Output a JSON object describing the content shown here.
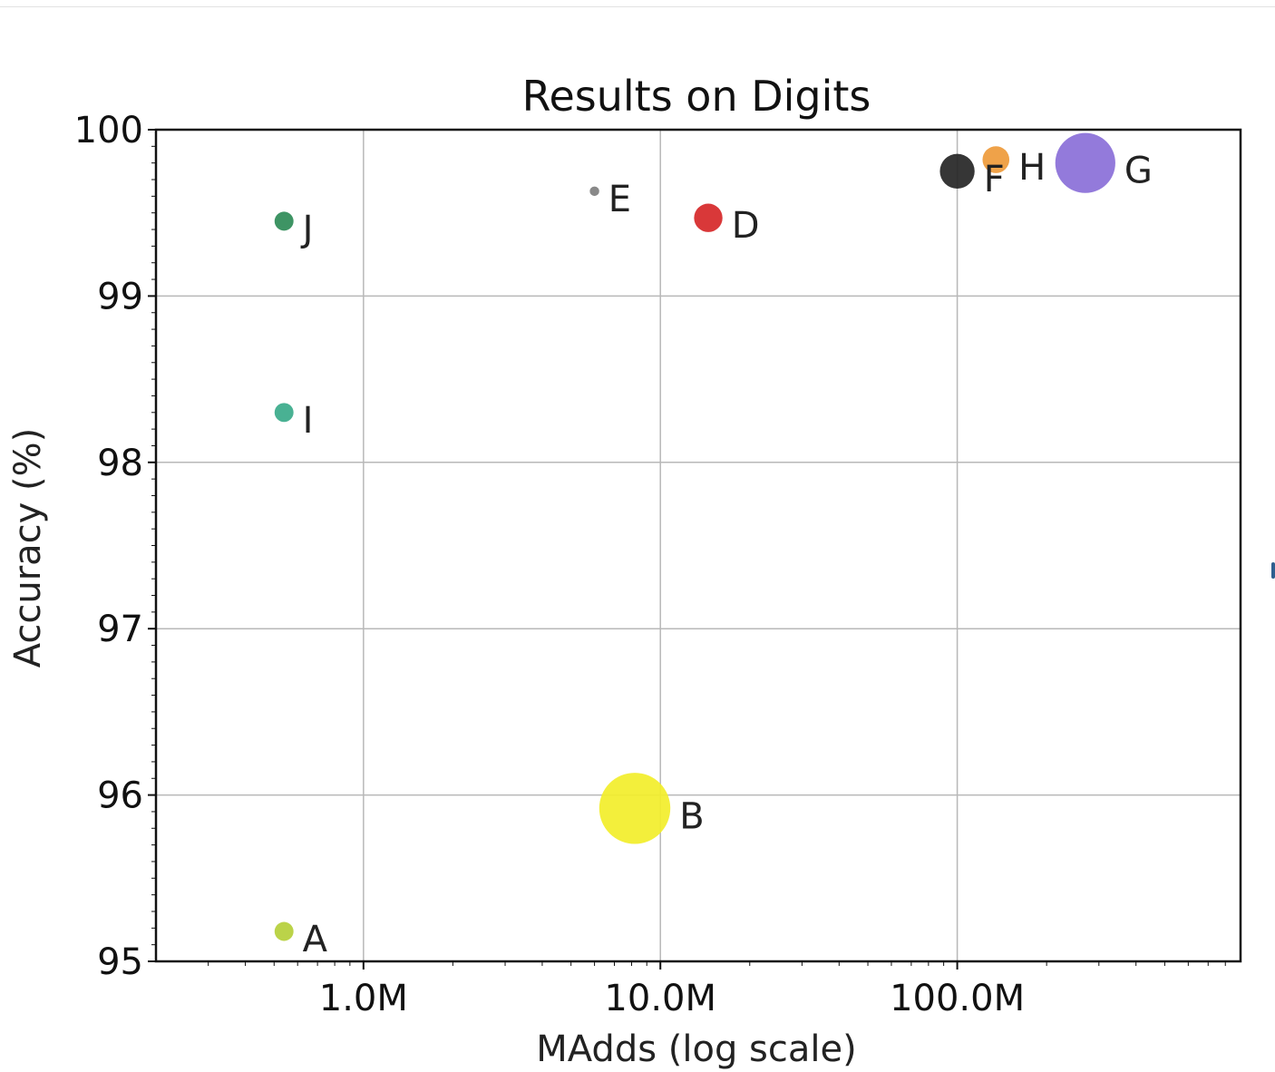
{
  "chart_data": {
    "type": "scatter",
    "title": "Results on Digits",
    "xlabel": "MAdds (log scale)",
    "ylabel": "Accuracy (%)",
    "x_scale": "log",
    "xlim": [
      0.2,
      900
    ],
    "ylim": [
      95,
      100
    ],
    "x_ticks": [
      {
        "value": 1,
        "label": "1.0M"
      },
      {
        "value": 10,
        "label": "10.0M"
      },
      {
        "value": 100,
        "label": "100.0M"
      }
    ],
    "y_ticks": [
      95,
      96,
      97,
      98,
      99,
      100
    ],
    "grid": true,
    "legend": "none",
    "points": [
      {
        "label": "A",
        "x": 0.54,
        "y": 95.18,
        "size": 0.12,
        "color": "#b5cf3a"
      },
      {
        "label": "B",
        "x": 8.2,
        "y": 95.92,
        "size": 0.45,
        "color": "#f2ee2a"
      },
      {
        "label": "D",
        "x": 14.5,
        "y": 99.47,
        "size": 0.18,
        "color": "#d62728"
      },
      {
        "label": "E",
        "x": 6.0,
        "y": 99.63,
        "size": 0.06,
        "color": "#7f7f7f"
      },
      {
        "label": "F",
        "x": 100,
        "y": 99.75,
        "size": 0.22,
        "color": "#252525"
      },
      {
        "label": "G",
        "x": 270,
        "y": 99.8,
        "size": 0.38,
        "color": "#8a6fd8"
      },
      {
        "label": "H",
        "x": 135,
        "y": 99.82,
        "size": 0.17,
        "color": "#ee9a3a"
      },
      {
        "label": "I",
        "x": 0.54,
        "y": 98.3,
        "size": 0.12,
        "color": "#3aaa8a"
      },
      {
        "label": "J",
        "x": 0.54,
        "y": 99.45,
        "size": 0.12,
        "color": "#2e8b57"
      }
    ]
  }
}
